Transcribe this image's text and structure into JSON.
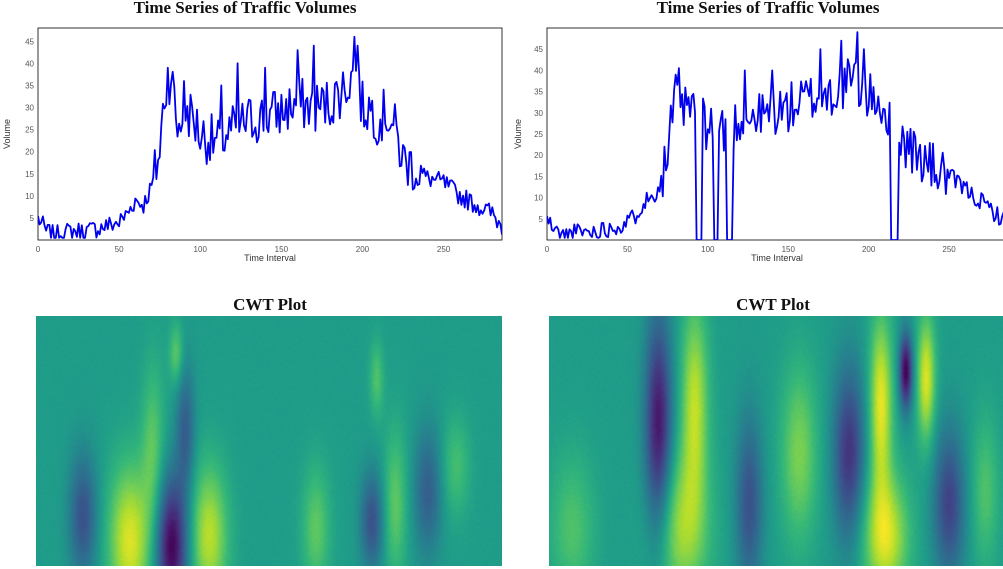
{
  "chart_data": [
    {
      "type": "line",
      "title": "Time Series of Traffic Volumes",
      "xlabel": "Time Interval",
      "ylabel": "Volume",
      "xlim": [
        0,
        286
      ],
      "ylim": [
        0,
        48
      ],
      "xticks": [
        0,
        50,
        100,
        150,
        200,
        250
      ],
      "yticks": [
        5,
        10,
        15,
        20,
        25,
        30,
        35,
        40,
        45
      ],
      "grid": false,
      "series_color": "#0000ee",
      "anchors": [
        [
          0,
          5
        ],
        [
          5,
          2
        ],
        [
          10,
          1
        ],
        [
          20,
          2
        ],
        [
          30,
          2
        ],
        [
          40,
          3
        ],
        [
          50,
          4
        ],
        [
          55,
          6
        ],
        [
          60,
          9
        ],
        [
          65,
          8
        ],
        [
          70,
          12
        ],
        [
          75,
          20
        ],
        [
          78,
          33
        ],
        [
          82,
          38
        ],
        [
          86,
          25
        ],
        [
          90,
          30
        ],
        [
          95,
          28
        ],
        [
          100,
          24
        ],
        [
          110,
          22
        ],
        [
          120,
          25
        ],
        [
          130,
          27
        ],
        [
          140,
          28
        ],
        [
          150,
          29
        ],
        [
          160,
          31
        ],
        [
          170,
          30
        ],
        [
          180,
          31
        ],
        [
          190,
          35
        ],
        [
          195,
          38
        ],
        [
          200,
          30
        ],
        [
          205,
          30
        ],
        [
          210,
          27
        ],
        [
          215,
          29
        ],
        [
          220,
          25
        ],
        [
          225,
          18
        ],
        [
          230,
          17
        ],
        [
          240,
          14
        ],
        [
          250,
          13
        ],
        [
          260,
          10
        ],
        [
          270,
          8
        ],
        [
          280,
          6
        ],
        [
          286,
          3
        ]
      ],
      "spikes": [
        [
          80,
          39
        ],
        [
          90,
          36
        ],
        [
          113,
          35
        ],
        [
          123,
          40
        ],
        [
          140,
          39
        ],
        [
          160,
          43
        ],
        [
          170,
          44
        ],
        [
          195,
          46
        ],
        [
          197,
          44
        ]
      ]
    },
    {
      "type": "line",
      "title": "Time Series of Traffic Volumes",
      "xlabel": "Time Interval",
      "ylabel": "Volume",
      "xlim": [
        0,
        286
      ],
      "ylim": [
        0,
        50
      ],
      "xticks": [
        0,
        50,
        100,
        150,
        200,
        250
      ],
      "yticks": [
        5,
        10,
        15,
        20,
        25,
        30,
        35,
        40,
        45
      ],
      "grid": false,
      "series_color": "#0000ee",
      "anchors": [
        [
          0,
          5
        ],
        [
          5,
          2
        ],
        [
          10,
          1
        ],
        [
          20,
          2
        ],
        [
          30,
          2
        ],
        [
          40,
          3
        ],
        [
          50,
          4
        ],
        [
          55,
          6
        ],
        [
          60,
          9
        ],
        [
          65,
          10
        ],
        [
          70,
          13
        ],
        [
          75,
          20
        ],
        [
          78,
          30
        ],
        [
          82,
          35
        ],
        [
          86,
          30
        ],
        [
          90,
          32
        ],
        [
          95,
          28
        ],
        [
          100,
          27
        ],
        [
          110,
          26
        ],
        [
          120,
          28
        ],
        [
          130,
          29
        ],
        [
          140,
          30
        ],
        [
          150,
          31
        ],
        [
          160,
          33
        ],
        [
          170,
          34
        ],
        [
          180,
          35
        ],
        [
          190,
          38
        ],
        [
          195,
          36
        ],
        [
          200,
          33
        ],
        [
          205,
          34
        ],
        [
          210,
          30
        ],
        [
          215,
          28
        ],
        [
          220,
          24
        ],
        [
          225,
          22
        ],
        [
          230,
          20
        ],
        [
          240,
          17
        ],
        [
          250,
          15
        ],
        [
          260,
          12
        ],
        [
          270,
          9
        ],
        [
          280,
          6
        ],
        [
          286,
          4
        ]
      ],
      "spikes": [
        [
          80,
          39
        ],
        [
          93,
          42
        ],
        [
          123,
          40
        ],
        [
          140,
          40
        ],
        [
          170,
          45
        ],
        [
          183,
          47
        ],
        [
          193,
          49
        ],
        [
          197,
          45
        ]
      ],
      "dropouts": [
        [
          93,
          96
        ],
        [
          104,
          106
        ],
        [
          112,
          115
        ],
        [
          214,
          218
        ]
      ]
    },
    {
      "type": "heatmap",
      "title": "CWT Plot",
      "colormap": "viridis",
      "blobs": [
        {
          "x": 0.2,
          "y": 0.9,
          "w": 0.045,
          "h": 0.3,
          "v": 0.95
        },
        {
          "x": 0.29,
          "y": 0.92,
          "w": 0.035,
          "h": 0.28,
          "v": 0.0
        },
        {
          "x": 0.37,
          "y": 0.88,
          "w": 0.04,
          "h": 0.28,
          "v": 0.9
        },
        {
          "x": 0.25,
          "y": 0.55,
          "w": 0.025,
          "h": 0.35,
          "v": 0.75
        },
        {
          "x": 0.3,
          "y": 0.15,
          "w": 0.015,
          "h": 0.12,
          "v": 0.75
        },
        {
          "x": 0.32,
          "y": 0.45,
          "w": 0.02,
          "h": 0.25,
          "v": 0.3
        },
        {
          "x": 0.1,
          "y": 0.8,
          "w": 0.03,
          "h": 0.25,
          "v": 0.25
        },
        {
          "x": 0.6,
          "y": 0.85,
          "w": 0.03,
          "h": 0.25,
          "v": 0.75
        },
        {
          "x": 0.72,
          "y": 0.82,
          "w": 0.025,
          "h": 0.2,
          "v": 0.25
        },
        {
          "x": 0.77,
          "y": 0.75,
          "w": 0.025,
          "h": 0.3,
          "v": 0.75
        },
        {
          "x": 0.84,
          "y": 0.7,
          "w": 0.03,
          "h": 0.25,
          "v": 0.3
        },
        {
          "x": 0.73,
          "y": 0.25,
          "w": 0.015,
          "h": 0.15,
          "v": 0.72
        },
        {
          "x": 0.9,
          "y": 0.6,
          "w": 0.03,
          "h": 0.2,
          "v": 0.7
        }
      ]
    },
    {
      "type": "heatmap",
      "title": "CWT Plot",
      "colormap": "viridis",
      "blobs": [
        {
          "x": 0.05,
          "y": 0.85,
          "w": 0.05,
          "h": 0.3,
          "v": 0.72
        },
        {
          "x": 0.24,
          "y": 0.45,
          "w": 0.03,
          "h": 0.45,
          "v": 0.05
        },
        {
          "x": 0.32,
          "y": 0.35,
          "w": 0.03,
          "h": 0.4,
          "v": 0.9
        },
        {
          "x": 0.29,
          "y": 0.85,
          "w": 0.06,
          "h": 0.3,
          "v": 0.85
        },
        {
          "x": 0.44,
          "y": 0.75,
          "w": 0.03,
          "h": 0.35,
          "v": 0.25
        },
        {
          "x": 0.55,
          "y": 0.55,
          "w": 0.04,
          "h": 0.35,
          "v": 0.8
        },
        {
          "x": 0.66,
          "y": 0.55,
          "w": 0.035,
          "h": 0.35,
          "v": 0.15
        },
        {
          "x": 0.73,
          "y": 0.35,
          "w": 0.025,
          "h": 0.35,
          "v": 0.97
        },
        {
          "x": 0.74,
          "y": 0.88,
          "w": 0.05,
          "h": 0.25,
          "v": 0.95
        },
        {
          "x": 0.785,
          "y": 0.22,
          "w": 0.015,
          "h": 0.15,
          "v": 0.0
        },
        {
          "x": 0.83,
          "y": 0.25,
          "w": 0.02,
          "h": 0.25,
          "v": 0.95
        },
        {
          "x": 0.88,
          "y": 0.75,
          "w": 0.035,
          "h": 0.3,
          "v": 0.2
        },
        {
          "x": 0.96,
          "y": 0.7,
          "w": 0.03,
          "h": 0.3,
          "v": 0.72
        }
      ]
    }
  ]
}
